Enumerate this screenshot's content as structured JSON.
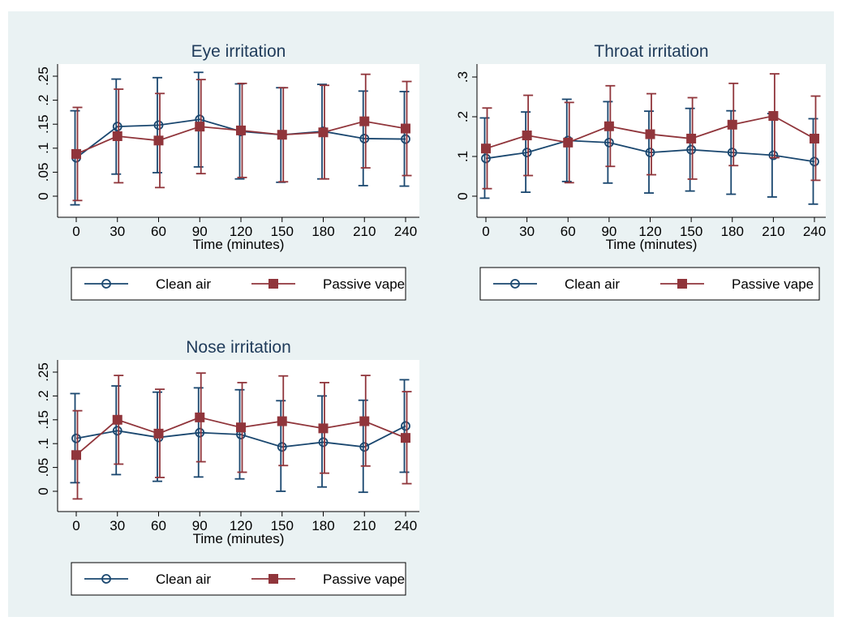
{
  "chart_data": [
    {
      "type": "line",
      "title": "Eye irritation",
      "xlabel": "Time (minutes)",
      "ylabel": "",
      "x": [
        0,
        30,
        60,
        90,
        120,
        150,
        180,
        210,
        240
      ],
      "x_ticks": [
        "0",
        "30",
        "60",
        "90",
        "120",
        "150",
        "180",
        "210",
        "240"
      ],
      "y_ticks": [
        "0",
        ".05",
        ".1",
        ".15",
        ".2",
        ".25"
      ],
      "ylim": [
        0,
        0.25
      ],
      "series": [
        {
          "name": "Clean air",
          "marker": "hollow-circle",
          "color": "#1a476f",
          "values": [
            0.08,
            0.145,
            0.148,
            0.16,
            0.135,
            0.128,
            0.135,
            0.12,
            0.119
          ],
          "ci_low": [
            -0.018,
            0.046,
            0.049,
            0.061,
            0.036,
            0.029,
            0.036,
            0.022,
            0.021
          ],
          "ci_high": [
            0.178,
            0.244,
            0.247,
            0.258,
            0.234,
            0.226,
            0.233,
            0.219,
            0.218
          ]
        },
        {
          "name": "Passive vape",
          "marker": "filled-square",
          "color": "#90353b",
          "values": [
            0.088,
            0.125,
            0.116,
            0.145,
            0.137,
            0.128,
            0.133,
            0.156,
            0.141
          ],
          "ci_low": [
            -0.009,
            0.028,
            0.018,
            0.047,
            0.039,
            0.03,
            0.036,
            0.059,
            0.043
          ],
          "ci_high": [
            0.185,
            0.223,
            0.214,
            0.243,
            0.235,
            0.226,
            0.231,
            0.254,
            0.239
          ]
        }
      ],
      "legend": "bottom"
    },
    {
      "type": "line",
      "title": "Throat irritation",
      "xlabel": "Time (minutes)",
      "ylabel": "",
      "x": [
        0,
        30,
        60,
        90,
        120,
        150,
        180,
        210,
        240
      ],
      "x_ticks": [
        "0",
        "30",
        "60",
        "90",
        "120",
        "150",
        "180",
        "210",
        "240"
      ],
      "y_ticks": [
        "0",
        ".1",
        ".2",
        ".3"
      ],
      "ylim": [
        0,
        0.3
      ],
      "series": [
        {
          "name": "Clean air",
          "marker": "hollow-circle",
          "color": "#1a476f",
          "values": [
            0.095,
            0.11,
            0.14,
            0.135,
            0.11,
            0.117,
            0.11,
            0.103,
            0.087
          ],
          "ci_low": [
            -0.005,
            0.01,
            0.037,
            0.033,
            0.008,
            0.013,
            0.005,
            -0.002,
            -0.02
          ],
          "ci_high": [
            0.197,
            0.212,
            0.244,
            0.238,
            0.214,
            0.221,
            0.215,
            0.208,
            0.195
          ]
        },
        {
          "name": "Passive vape",
          "marker": "filled-square",
          "color": "#90353b",
          "values": [
            0.12,
            0.153,
            0.135,
            0.176,
            0.156,
            0.145,
            0.18,
            0.202,
            0.145
          ],
          "ci_low": [
            0.019,
            0.052,
            0.034,
            0.075,
            0.054,
            0.043,
            0.077,
            0.097,
            0.04
          ],
          "ci_high": [
            0.222,
            0.254,
            0.236,
            0.278,
            0.258,
            0.248,
            0.284,
            0.308,
            0.252
          ]
        }
      ],
      "legend": "bottom"
    },
    {
      "type": "line",
      "title": "Nose irritation",
      "xlabel": "Time (minutes)",
      "ylabel": "",
      "x": [
        0,
        30,
        60,
        90,
        120,
        150,
        180,
        210,
        240
      ],
      "x_ticks": [
        "0",
        "30",
        "60",
        "90",
        "120",
        "150",
        "180",
        "210",
        "240"
      ],
      "y_ticks": [
        "0",
        ".05",
        ".1",
        ".15",
        ".2",
        ".25"
      ],
      "ylim": [
        0,
        0.25
      ],
      "series": [
        {
          "name": "Clean air",
          "marker": "hollow-circle",
          "color": "#1a476f",
          "values": [
            0.111,
            0.127,
            0.113,
            0.123,
            0.119,
            0.093,
            0.103,
            0.093,
            0.137
          ],
          "ci_low": [
            0.018,
            0.035,
            0.021,
            0.03,
            0.026,
            0.0,
            0.009,
            -0.002,
            0.04
          ],
          "ci_high": [
            0.205,
            0.221,
            0.208,
            0.217,
            0.213,
            0.19,
            0.2,
            0.191,
            0.234
          ]
        },
        {
          "name": "Passive vape",
          "marker": "filled-square",
          "color": "#90353b",
          "values": [
            0.076,
            0.15,
            0.121,
            0.155,
            0.134,
            0.147,
            0.132,
            0.147,
            0.112
          ],
          "ci_low": [
            -0.016,
            0.057,
            0.029,
            0.062,
            0.04,
            0.054,
            0.038,
            0.053,
            0.016
          ],
          "ci_high": [
            0.169,
            0.243,
            0.214,
            0.248,
            0.228,
            0.242,
            0.228,
            0.243,
            0.209
          ]
        }
      ],
      "legend": "bottom"
    }
  ]
}
